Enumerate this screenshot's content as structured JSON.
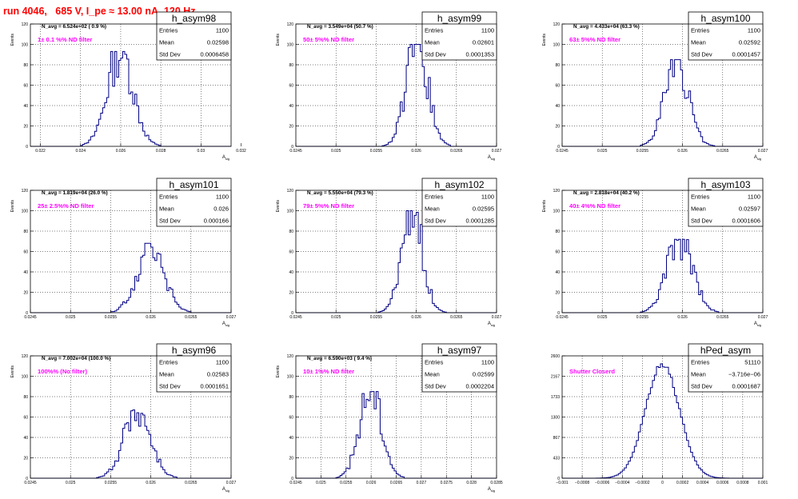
{
  "canvas_title": "run 4046,   685 V, I_pe ≈ 13.00 nA, 120 Hz",
  "colors": {
    "histogram": "#000080",
    "filter_note": "#ff00ff",
    "title": "#ff0000",
    "grid": "#000000"
  },
  "stat_labels": [
    "Entries",
    "Mean",
    "Std Dev"
  ],
  "chart_data": [
    {
      "type": "histogram",
      "name": "h_asym98",
      "navg": "N_avg = 6.524e+02 ( 0.9 %)",
      "note": "1± 0.1 %% ND filter",
      "stats": {
        "entries": "1100",
        "mean": "0.02598",
        "stddev": "0.0006458"
      },
      "xlim": [
        0.0215,
        0.0315
      ],
      "ylim": [
        0,
        120
      ],
      "xlabel": "A_sig",
      "ylabel": "Events",
      "grid": true,
      "xticks": [
        {
          "v": 0.022,
          "t": "0.022"
        },
        {
          "v": 0.024,
          "t": "0.024"
        },
        {
          "v": 0.026,
          "t": "0.026"
        },
        {
          "v": 0.028,
          "t": "0.028"
        },
        {
          "v": 0.03,
          "t": "0.03"
        },
        {
          "v": 0.032,
          "t": "0.032"
        }
      ],
      "peak": {
        "mu": 0.02598,
        "sigma": 0.00064,
        "h": 93
      }
    },
    {
      "type": "histogram",
      "name": "h_asym99",
      "navg": "N_avg = 3.549e+04 (50.7 %)",
      "note": "50± 5%% ND filter",
      "stats": {
        "entries": "1100",
        "mean": "0.02601",
        "stddev": "0.0001353"
      },
      "xlim": [
        0.0245,
        0.027
      ],
      "ylim": [
        0,
        120
      ],
      "xlabel": "A_sig",
      "ylabel": "Events",
      "grid": true,
      "xticks": [
        {
          "v": 0.0245,
          "t": "0.0245"
        },
        {
          "v": 0.025,
          "t": "0.025"
        },
        {
          "v": 0.0255,
          "t": "0.0255"
        },
        {
          "v": 0.026,
          "t": "0.026"
        },
        {
          "v": 0.0265,
          "t": "0.0265"
        },
        {
          "v": 0.027,
          "t": "0.027"
        }
      ],
      "peak": {
        "mu": 0.02601,
        "sigma": 0.000135,
        "h": 100
      }
    },
    {
      "type": "histogram",
      "name": "h_asym100",
      "navg": "N_avg = 4.433e+04 (63.3 %)",
      "note": "63± 5%% ND filter",
      "stats": {
        "entries": "1100",
        "mean": "0.02592",
        "stddev": "0.0001457"
      },
      "xlim": [
        0.0245,
        0.027
      ],
      "ylim": [
        0,
        120
      ],
      "xlabel": "A_sig",
      "ylabel": "Events",
      "grid": true,
      "xticks": [
        {
          "v": 0.0245,
          "t": "0.0245"
        },
        {
          "v": 0.025,
          "t": "0.025"
        },
        {
          "v": 0.0255,
          "t": "0.0255"
        },
        {
          "v": 0.026,
          "t": "0.026"
        },
        {
          "v": 0.0265,
          "t": "0.0265"
        },
        {
          "v": 0.027,
          "t": "0.027"
        }
      ],
      "peak": {
        "mu": 0.02592,
        "sigma": 0.000146,
        "h": 85
      }
    },
    {
      "type": "histogram",
      "name": "h_asym101",
      "navg": "N_avg = 1.819e+04 (26.0 %)",
      "note": "25± 2.5%% ND filter",
      "stats": {
        "entries": "1100",
        "mean": "0.026",
        "stddev": "0.000166"
      },
      "xlim": [
        0.0245,
        0.027
      ],
      "ylim": [
        0,
        120
      ],
      "xlabel": "A_sig",
      "ylabel": "Events",
      "grid": true,
      "xticks": [
        {
          "v": 0.0245,
          "t": "0.0245"
        },
        {
          "v": 0.025,
          "t": "0.025"
        },
        {
          "v": 0.0255,
          "t": "0.0255"
        },
        {
          "v": 0.026,
          "t": "0.026"
        },
        {
          "v": 0.0265,
          "t": "0.0265"
        },
        {
          "v": 0.027,
          "t": "0.027"
        }
      ],
      "peak": {
        "mu": 0.026,
        "sigma": 0.000166,
        "h": 68
      }
    },
    {
      "type": "histogram",
      "name": "h_asym102",
      "navg": "N_avg = 5.550e+04 (79.3 %)",
      "note": "79± 5%% ND filter",
      "stats": {
        "entries": "1100",
        "mean": "0.02595",
        "stddev": "0.0001285"
      },
      "xlim": [
        0.0245,
        0.027
      ],
      "ylim": [
        0,
        120
      ],
      "xlabel": "A_sig",
      "ylabel": "Events",
      "grid": true,
      "xticks": [
        {
          "v": 0.0245,
          "t": "0.0245"
        },
        {
          "v": 0.025,
          "t": "0.025"
        },
        {
          "v": 0.0255,
          "t": "0.0255"
        },
        {
          "v": 0.026,
          "t": "0.026"
        },
        {
          "v": 0.0265,
          "t": "0.0265"
        },
        {
          "v": 0.027,
          "t": "0.027"
        }
      ],
      "peak": {
        "mu": 0.02595,
        "sigma": 0.000128,
        "h": 100
      }
    },
    {
      "type": "histogram",
      "name": "h_asym103",
      "navg": "N_avg = 2.818e+04 (40.2 %)",
      "note": "40± 4%% ND filter",
      "stats": {
        "entries": "1100",
        "mean": "0.02597",
        "stddev": "0.0001606"
      },
      "xlim": [
        0.0245,
        0.027
      ],
      "ylim": [
        0,
        120
      ],
      "xlabel": "A_sig",
      "ylabel": "Events",
      "grid": true,
      "xticks": [
        {
          "v": 0.0245,
          "t": "0.0245"
        },
        {
          "v": 0.025,
          "t": "0.025"
        },
        {
          "v": 0.0255,
          "t": "0.0255"
        },
        {
          "v": 0.026,
          "t": "0.026"
        },
        {
          "v": 0.0265,
          "t": "0.0265"
        },
        {
          "v": 0.027,
          "t": "0.027"
        }
      ],
      "peak": {
        "mu": 0.02597,
        "sigma": 0.00016,
        "h": 72
      }
    },
    {
      "type": "histogram",
      "name": "h_asym96",
      "navg": "N_avg = 7.002e+04 (100.0 %)",
      "note": "100%% (No filter)",
      "stats": {
        "entries": "1100",
        "mean": "0.02583",
        "stddev": "0.0001651"
      },
      "xlim": [
        0.0245,
        0.027
      ],
      "ylim": [
        0,
        120
      ],
      "xlabel": "A_sig",
      "ylabel": "Events",
      "grid": true,
      "xticks": [
        {
          "v": 0.0245,
          "t": "0.0245"
        },
        {
          "v": 0.025,
          "t": "0.025"
        },
        {
          "v": 0.0255,
          "t": "0.0255"
        },
        {
          "v": 0.026,
          "t": "0.026"
        },
        {
          "v": 0.0265,
          "t": "0.0265"
        },
        {
          "v": 0.027,
          "t": "0.027"
        }
      ],
      "peak": {
        "mu": 0.02583,
        "sigma": 0.000165,
        "h": 67
      }
    },
    {
      "type": "histogram",
      "name": "h_asym97",
      "navg": "N_avg = 6.590e+03 ( 9.4 %)",
      "note": "10± 1%% ND filter",
      "stats": {
        "entries": "1100",
        "mean": "0.02599",
        "stddev": "0.0002204"
      },
      "xlim": [
        0.0245,
        0.0285
      ],
      "ylim": [
        0,
        120
      ],
      "xlabel": "A_sig",
      "ylabel": "Events",
      "grid": true,
      "xticks": [
        {
          "v": 0.0245,
          "t": "0.0245"
        },
        {
          "v": 0.025,
          "t": "0.025"
        },
        {
          "v": 0.0255,
          "t": "0.0255"
        },
        {
          "v": 0.026,
          "t": "0.026"
        },
        {
          "v": 0.0265,
          "t": "0.0265"
        },
        {
          "v": 0.027,
          "t": "0.027"
        },
        {
          "v": 0.0275,
          "t": "0.0275"
        },
        {
          "v": 0.028,
          "t": "0.028"
        },
        {
          "v": 0.0285,
          "t": "0.0285"
        }
      ],
      "peak": {
        "mu": 0.02599,
        "sigma": 0.00022,
        "h": 85
      }
    },
    {
      "type": "histogram",
      "name": "hPed_asym",
      "navg": "",
      "note": "Shutter Closerd",
      "stats": {
        "entries": "51110",
        "mean": "−3.716e−06",
        "stddev": "0.0001687"
      },
      "xlim": [
        -0.001,
        0.001
      ],
      "ylim": [
        0,
        2600
      ],
      "xlabel": "",
      "ylabel": "",
      "grid": true,
      "xticks": [
        {
          "v": -0.001,
          "t": "−0.001"
        },
        {
          "v": -0.0008,
          "t": "−0.0008"
        },
        {
          "v": -0.0006,
          "t": "−0.0006"
        },
        {
          "v": -0.0004,
          "t": "−0.0004"
        },
        {
          "v": -0.0002,
          "t": "−0.0002"
        },
        {
          "v": 0,
          "t": "0"
        },
        {
          "v": 0.0002,
          "t": "0.0002"
        },
        {
          "v": 0.0004,
          "t": "0.0004"
        },
        {
          "v": 0.0006,
          "t": "0.0006"
        },
        {
          "v": 0.0008,
          "t": "0.0008"
        },
        {
          "v": 0.001,
          "t": "0.001"
        }
      ],
      "peak": {
        "mu": 0.0,
        "sigma": 0.000169,
        "h": 2430
      }
    }
  ]
}
